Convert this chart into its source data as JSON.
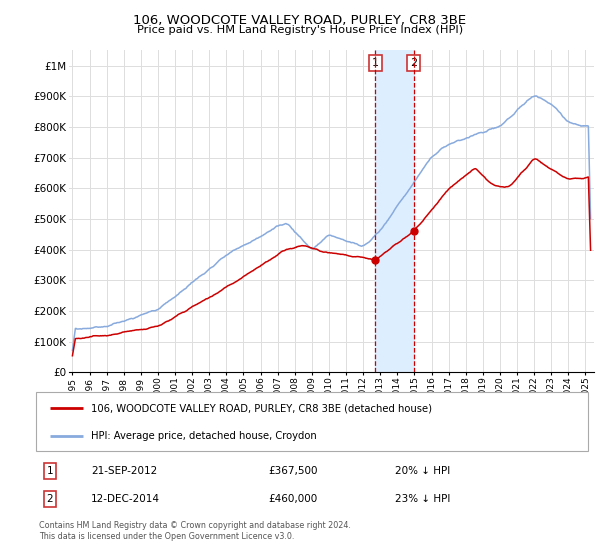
{
  "title": "106, WOODCOTE VALLEY ROAD, PURLEY, CR8 3BE",
  "subtitle": "Price paid vs. HM Land Registry's House Price Index (HPI)",
  "legend_label_red": "106, WOODCOTE VALLEY ROAD, PURLEY, CR8 3BE (detached house)",
  "legend_label_blue": "HPI: Average price, detached house, Croydon",
  "footer": "Contains HM Land Registry data © Crown copyright and database right 2024.\nThis data is licensed under the Open Government Licence v3.0.",
  "sale1_label": "1",
  "sale1_date": "21-SEP-2012",
  "sale1_price": "£367,500",
  "sale1_pct": "20% ↓ HPI",
  "sale1_year": 2012.72,
  "sale1_value": 367500,
  "sale2_label": "2",
  "sale2_date": "12-DEC-2014",
  "sale2_price": "£460,000",
  "sale2_pct": "23% ↓ HPI",
  "sale2_year": 2014.95,
  "sale2_value": 460000,
  "color_red": "#cc0000",
  "color_blue": "#88aadd",
  "color_vline": "#cc0000",
  "color_shade": "#ddeeff",
  "ylim": [
    0,
    1050000
  ],
  "xlim_start": 1994.8,
  "xlim_end": 2025.5,
  "background_color": "#ffffff",
  "grid_color": "#dddddd"
}
